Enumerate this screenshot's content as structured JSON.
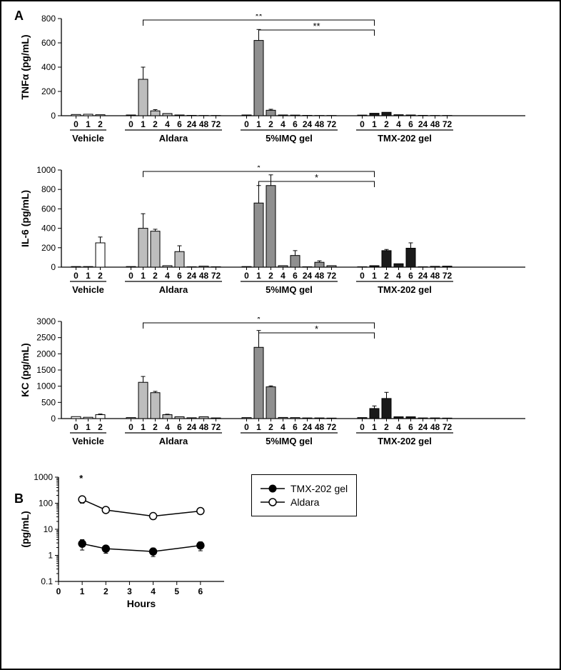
{
  "panelA": {
    "xLabelsVehicle": [
      "0",
      "1",
      "2"
    ],
    "xLabelsGroup": [
      "0",
      "1",
      "2",
      "4",
      "6",
      "24",
      "48",
      "72"
    ],
    "groups": [
      "Vehicle",
      "Aldara",
      "5%IMQ gel",
      "TMX-202 gel"
    ],
    "colors": {
      "Vehicle": "#ffffff",
      "Aldara": "#bdbdbd",
      "5%IMQ gel": "#8f8f8f",
      "TMX-202 gel": "#1a1a1a"
    },
    "charts": [
      {
        "yTitle": "TNFα (pg/mL)",
        "yMax": 800,
        "yStep": 200,
        "sig": "**",
        "values": {
          "Vehicle": [
            [
              10,
              0
            ],
            [
              12,
              0
            ],
            [
              8,
              0
            ]
          ],
          "Aldara": [
            [
              6,
              0
            ],
            [
              300,
              100
            ],
            [
              40,
              10
            ],
            [
              18,
              0
            ],
            [
              6,
              0
            ],
            [
              3,
              0
            ],
            [
              2,
              0
            ],
            [
              2,
              0
            ]
          ],
          "5%IMQ gel": [
            [
              6,
              0
            ],
            [
              620,
              90
            ],
            [
              45,
              8
            ],
            [
              6,
              0
            ],
            [
              5,
              0
            ],
            [
              3,
              0
            ],
            [
              2,
              0
            ],
            [
              2,
              0
            ]
          ],
          "TMX-202 gel": [
            [
              5,
              0
            ],
            [
              20,
              0
            ],
            [
              28,
              0
            ],
            [
              8,
              0
            ],
            [
              6,
              0
            ],
            [
              3,
              0
            ],
            [
              2,
              0
            ],
            [
              2,
              0
            ]
          ]
        }
      },
      {
        "yTitle": "IL-6 (pg/mL)",
        "yMax": 1000,
        "yStep": 200,
        "sig": "*",
        "values": {
          "Vehicle": [
            [
              6,
              0
            ],
            [
              6,
              0
            ],
            [
              250,
              60
            ]
          ],
          "Aldara": [
            [
              6,
              0
            ],
            [
              400,
              150
            ],
            [
              370,
              20
            ],
            [
              15,
              0
            ],
            [
              160,
              60
            ],
            [
              4,
              0
            ],
            [
              10,
              0
            ],
            [
              4,
              0
            ]
          ],
          "5%IMQ gel": [
            [
              6,
              0
            ],
            [
              660,
              180
            ],
            [
              840,
              110
            ],
            [
              15,
              0
            ],
            [
              120,
              50
            ],
            [
              4,
              0
            ],
            [
              50,
              15
            ],
            [
              15,
              0
            ]
          ],
          "TMX-202 gel": [
            [
              4,
              0
            ],
            [
              15,
              0
            ],
            [
              170,
              12
            ],
            [
              35,
              0
            ],
            [
              195,
              55
            ],
            [
              4,
              0
            ],
            [
              8,
              0
            ],
            [
              10,
              0
            ]
          ]
        }
      },
      {
        "yTitle": "KC (pg/mL)",
        "yMax": 3000,
        "yStep": 500,
        "sig": "*",
        "values": {
          "Vehicle": [
            [
              60,
              0
            ],
            [
              40,
              0
            ],
            [
              120,
              20
            ]
          ],
          "Aldara": [
            [
              30,
              0
            ],
            [
              1120,
              180
            ],
            [
              800,
              40
            ],
            [
              120,
              15
            ],
            [
              55,
              0
            ],
            [
              25,
              0
            ],
            [
              55,
              0
            ],
            [
              20,
              0
            ]
          ],
          "5%IMQ gel": [
            [
              30,
              0
            ],
            [
              2200,
              520
            ],
            [
              980,
              30
            ],
            [
              35,
              0
            ],
            [
              30,
              0
            ],
            [
              20,
              0
            ],
            [
              20,
              0
            ],
            [
              15,
              0
            ]
          ],
          "TMX-202 gel": [
            [
              30,
              0
            ],
            [
              310,
              80
            ],
            [
              620,
              190
            ],
            [
              55,
              0
            ],
            [
              55,
              0
            ],
            [
              20,
              0
            ],
            [
              20,
              0
            ],
            [
              15,
              0
            ]
          ]
        }
      }
    ]
  },
  "panelB": {
    "xTitle": "Hours",
    "yTitle": "(pg/mL)",
    "xTicks": [
      0,
      1,
      2,
      3,
      4,
      5,
      6
    ],
    "yTicks": [
      0.1,
      1,
      10,
      100,
      1000
    ],
    "sigAt": 1,
    "series": [
      {
        "name": "TMX-202 gel",
        "color": "#000000",
        "fill": "#000000",
        "points": [
          [
            1,
            2.8
          ],
          [
            2,
            1.8
          ],
          [
            4,
            1.4
          ],
          [
            6,
            2.4
          ]
        ]
      },
      {
        "name": "Aldara",
        "color": "#000000",
        "fill": "#ffffff",
        "points": [
          [
            1,
            140
          ],
          [
            2,
            55
          ],
          [
            4,
            32
          ],
          [
            6,
            50
          ]
        ]
      }
    ],
    "errors": {
      "TMX-202 gel": [
        1.2,
        0.6,
        0.5,
        0.9
      ],
      "Aldara": [
        40,
        12,
        8,
        12
      ]
    }
  }
}
